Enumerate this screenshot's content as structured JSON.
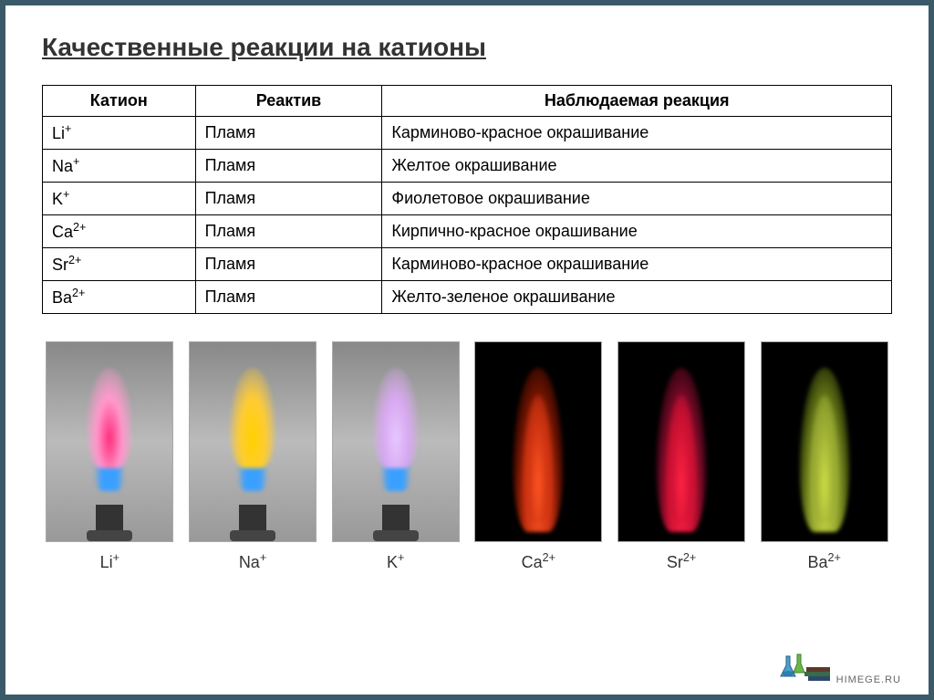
{
  "title": "Качественные реакции на катионы",
  "table": {
    "headers": [
      "Катион",
      "Реактив",
      "Наблюдаемая реакция"
    ],
    "rows": [
      {
        "cation": "Li",
        "charge": "+",
        "reagent": "Пламя",
        "reaction": "Карминово-красное окрашивание"
      },
      {
        "cation": "Na",
        "charge": "+",
        "reagent": "Пламя",
        "reaction": "Желтое окрашивание"
      },
      {
        "cation": "K",
        "charge": "+",
        "reagent": "Пламя",
        "reaction": "Фиолетовое окрашивание"
      },
      {
        "cation": "Ca",
        "charge": "2+",
        "reagent": "Пламя",
        "reaction": "Кирпично-красное окрашивание"
      },
      {
        "cation": "Sr",
        "charge": "2+",
        "reagent": "Пламя",
        "reaction": "Карминово-красное окрашивание"
      },
      {
        "cation": "Ba",
        "charge": "2+",
        "reagent": "Пламя",
        "reaction": "Желто-зеленое окрашивание"
      }
    ]
  },
  "flames": [
    {
      "label": "Li",
      "charge": "+",
      "bg": "light",
      "color1": "#ff2a7a",
      "color2": "#ff99cc",
      "color3": "#3aa0ff",
      "burner": true
    },
    {
      "label": "Na",
      "charge": "+",
      "bg": "light",
      "color1": "#ffd000",
      "color2": "#ffcc33",
      "color3": "#3aa0ff",
      "burner": true
    },
    {
      "label": "K",
      "charge": "+",
      "bg": "light",
      "color1": "#e6c8ff",
      "color2": "#d8a8f0",
      "color3": "#3aa0ff",
      "burner": true
    },
    {
      "label": "Ca",
      "charge": "2+",
      "bg": "dark",
      "color1": "#ff5522",
      "color2": "#cc3311",
      "color3": "#661100",
      "burner": false
    },
    {
      "label": "Sr",
      "charge": "2+",
      "bg": "dark",
      "color1": "#ff2244",
      "color2": "#cc1133",
      "color3": "#660822",
      "burner": false
    },
    {
      "label": "Ba",
      "charge": "2+",
      "bg": "dark",
      "color1": "#ccdd44",
      "color2": "#99aa33",
      "color3": "#556611",
      "burner": false
    }
  ],
  "footer": "HIMEGE.RU"
}
